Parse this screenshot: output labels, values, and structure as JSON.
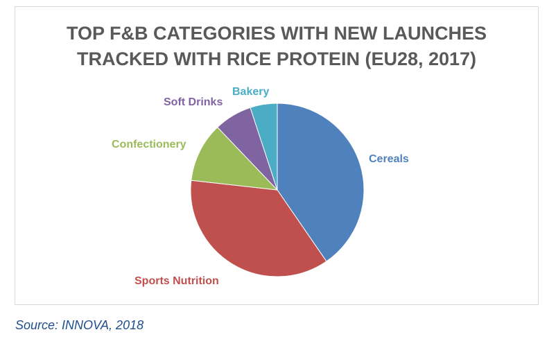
{
  "chart": {
    "title_line_1": "TOP F&B CATEGORIES WITH NEW LAUNCHES",
    "title_line_2": "TRACKED WITH RICE PROTEIN (EU28, 2017)"
  },
  "source": "Source: INNOVA, 2018",
  "chart_data": {
    "type": "pie",
    "title": "TOP F&B CATEGORIES WITH NEW LAUNCHES TRACKED WITH RICE PROTEIN (EU28, 2017)",
    "categories": [
      "Cereals",
      "Sports Nutrition",
      "Confectionery",
      "Soft Drinks",
      "Bakery"
    ],
    "values": [
      40,
      36,
      11,
      7,
      5
    ],
    "colors": [
      "#4f81bd",
      "#c0504d",
      "#9bbb59",
      "#8064a2",
      "#4bacc6"
    ],
    "start_angle_deg": 0,
    "direction": "clockwise",
    "legend": "none",
    "labels": "outside, category name in slice color"
  }
}
